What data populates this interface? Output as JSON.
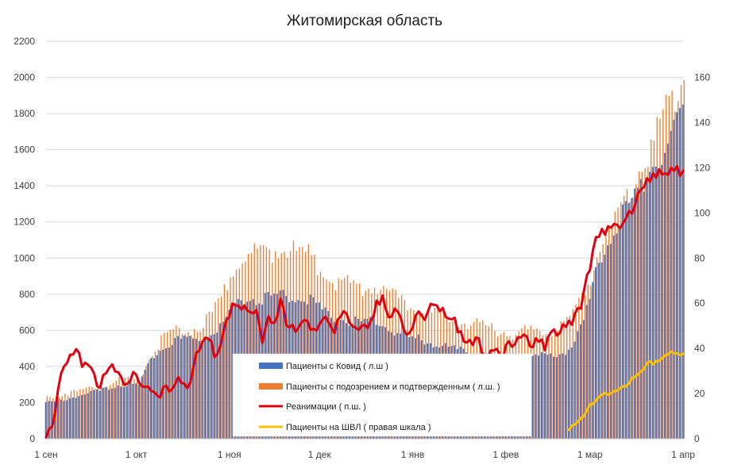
{
  "chart_data": {
    "type": "bar",
    "title": "Житомирская область",
    "x_ticks": [
      "1 сен",
      "1 окт",
      "1 ноя",
      "1 дек",
      "1 янв",
      "1 фев",
      "1 мар",
      "1 апр"
    ],
    "x_tick_days": [
      0,
      30,
      61,
      91,
      122,
      153,
      181,
      212
    ],
    "num_days": 212,
    "y_left": {
      "min": 0,
      "max": 2200,
      "ticks": [
        0,
        200,
        400,
        600,
        800,
        1000,
        1200,
        1400,
        1600,
        1800,
        2000,
        2200
      ]
    },
    "y_right": {
      "min": 0,
      "max": 176,
      "ticks": [
        0,
        20,
        40,
        60,
        80,
        100,
        120,
        140,
        160
      ]
    },
    "grid": true,
    "legend_position": "bottom-center",
    "series": [
      {
        "name": "Пациенты с Ковид ( л.ш )",
        "type": "bar",
        "axis": "left",
        "color": "#4472C4",
        "keypoints": [
          [
            0,
            200
          ],
          [
            10,
            240
          ],
          [
            20,
            280
          ],
          [
            25,
            310
          ],
          [
            31,
            300
          ],
          [
            33,
            380
          ],
          [
            36,
            480
          ],
          [
            40,
            540
          ],
          [
            45,
            560
          ],
          [
            50,
            560
          ],
          [
            55,
            600
          ],
          [
            60,
            680
          ],
          [
            63,
            760
          ],
          [
            67,
            800
          ],
          [
            70,
            790
          ],
          [
            73,
            800
          ],
          [
            78,
            820
          ],
          [
            83,
            800
          ],
          [
            88,
            800
          ],
          [
            91,
            740
          ],
          [
            95,
            700
          ],
          [
            100,
            680
          ],
          [
            105,
            650
          ],
          [
            110,
            680
          ],
          [
            115,
            620
          ],
          [
            120,
            580
          ],
          [
            125,
            560
          ],
          [
            130,
            540
          ],
          [
            135,
            510
          ],
          [
            140,
            490
          ],
          [
            145,
            470
          ],
          [
            150,
            460
          ],
          [
            155,
            440
          ],
          [
            160,
            460
          ],
          [
            165,
            470
          ],
          [
            170,
            470
          ],
          [
            175,
            520
          ],
          [
            178,
            620
          ],
          [
            181,
            780
          ],
          [
            184,
            1000
          ],
          [
            188,
            1150
          ],
          [
            191,
            1250
          ],
          [
            195,
            1350
          ],
          [
            198,
            1450
          ],
          [
            202,
            1550
          ],
          [
            205,
            1600
          ],
          [
            208,
            1700
          ],
          [
            212,
            1840
          ]
        ]
      },
      {
        "name": "Пациенты с подозрением и подтвержденным ( л.ш. )",
        "type": "bar",
        "axis": "left",
        "color": "#ED7D31",
        "keypoints": [
          [
            0,
            240
          ],
          [
            10,
            270
          ],
          [
            20,
            310
          ],
          [
            25,
            340
          ],
          [
            31,
            330
          ],
          [
            33,
            420
          ],
          [
            36,
            520
          ],
          [
            40,
            600
          ],
          [
            45,
            620
          ],
          [
            50,
            630
          ],
          [
            55,
            700
          ],
          [
            60,
            880
          ],
          [
            63,
            1000
          ],
          [
            67,
            1060
          ],
          [
            70,
            1060
          ],
          [
            73,
            1060
          ],
          [
            78,
            1080
          ],
          [
            83,
            1070
          ],
          [
            88,
            1040
          ],
          [
            91,
            960
          ],
          [
            95,
            900
          ],
          [
            100,
            890
          ],
          [
            105,
            860
          ],
          [
            110,
            870
          ],
          [
            115,
            820
          ],
          [
            120,
            760
          ],
          [
            125,
            720
          ],
          [
            130,
            700
          ],
          [
            135,
            680
          ],
          [
            140,
            660
          ],
          [
            145,
            640
          ],
          [
            150,
            620
          ],
          [
            155,
            600
          ],
          [
            160,
            620
          ],
          [
            165,
            620
          ],
          [
            170,
            620
          ],
          [
            175,
            700
          ],
          [
            178,
            800
          ],
          [
            181,
            920
          ],
          [
            184,
            1100
          ],
          [
            188,
            1200
          ],
          [
            191,
            1300
          ],
          [
            195,
            1420
          ],
          [
            198,
            1600
          ],
          [
            202,
            1700
          ],
          [
            205,
            1800
          ],
          [
            208,
            1950
          ],
          [
            212,
            2080
          ]
        ]
      },
      {
        "name": "Реанимации ( п.ш. )",
        "type": "line",
        "axis": "right",
        "color": "#E0000F",
        "keypoints": [
          [
            0,
            3
          ],
          [
            2,
            10
          ],
          [
            4,
            22
          ],
          [
            6,
            32
          ],
          [
            8,
            38
          ],
          [
            10,
            39
          ],
          [
            12,
            37
          ],
          [
            14,
            36
          ],
          [
            16,
            31
          ],
          [
            18,
            26
          ],
          [
            20,
            28
          ],
          [
            22,
            31
          ],
          [
            24,
            29
          ],
          [
            26,
            27
          ],
          [
            28,
            31
          ],
          [
            30,
            33
          ],
          [
            32,
            27
          ],
          [
            34,
            23
          ],
          [
            36,
            21
          ],
          [
            38,
            20
          ],
          [
            40,
            23
          ],
          [
            42,
            26
          ],
          [
            44,
            30
          ],
          [
            46,
            28
          ],
          [
            48,
            28
          ],
          [
            50,
            38
          ],
          [
            52,
            42
          ],
          [
            54,
            44
          ],
          [
            56,
            42
          ],
          [
            58,
            44
          ],
          [
            60,
            55
          ],
          [
            62,
            62
          ],
          [
            64,
            60
          ],
          [
            66,
            58
          ],
          [
            68,
            55
          ],
          [
            70,
            58
          ],
          [
            72,
            48
          ],
          [
            74,
            58
          ],
          [
            76,
            54
          ],
          [
            78,
            60
          ],
          [
            80,
            52
          ],
          [
            82,
            50
          ],
          [
            84,
            48
          ],
          [
            86,
            56
          ],
          [
            88,
            54
          ],
          [
            90,
            52
          ],
          [
            92,
            55
          ],
          [
            94,
            51
          ],
          [
            96,
            48
          ],
          [
            98,
            55
          ],
          [
            100,
            55
          ],
          [
            102,
            52
          ],
          [
            104,
            54
          ],
          [
            106,
            56
          ],
          [
            108,
            52
          ],
          [
            110,
            60
          ],
          [
            112,
            62
          ],
          [
            114,
            54
          ],
          [
            116,
            60
          ],
          [
            118,
            58
          ],
          [
            120,
            50
          ],
          [
            122,
            54
          ],
          [
            124,
            56
          ],
          [
            126,
            52
          ],
          [
            128,
            60
          ],
          [
            130,
            62
          ],
          [
            132,
            60
          ],
          [
            134,
            58
          ],
          [
            136,
            56
          ],
          [
            138,
            46
          ],
          [
            140,
            44
          ],
          [
            142,
            42
          ],
          [
            144,
            44
          ],
          [
            146,
            40
          ],
          [
            148,
            43
          ],
          [
            150,
            44
          ],
          [
            152,
            40
          ],
          [
            154,
            42
          ],
          [
            156,
            40
          ],
          [
            158,
            46
          ],
          [
            160,
            48
          ],
          [
            162,
            45
          ],
          [
            164,
            48
          ],
          [
            166,
            44
          ],
          [
            168,
            47
          ],
          [
            170,
            46
          ],
          [
            172,
            50
          ],
          [
            174,
            52
          ],
          [
            176,
            58
          ],
          [
            178,
            62
          ],
          [
            180,
            75
          ],
          [
            182,
            85
          ],
          [
            184,
            90
          ],
          [
            186,
            92
          ],
          [
            188,
            95
          ],
          [
            190,
            98
          ],
          [
            192,
            100
          ],
          [
            194,
            103
          ],
          [
            196,
            106
          ],
          [
            198,
            110
          ],
          [
            200,
            114
          ],
          [
            202,
            116
          ],
          [
            204,
            118
          ],
          [
            206,
            120
          ],
          [
            208,
            125
          ],
          [
            210,
            124
          ],
          [
            212,
            120
          ]
        ]
      },
      {
        "name": "Пациенты на ШВЛ ( правая шкала )",
        "type": "line",
        "axis": "right",
        "color": "#FFC000",
        "keypoints": [
          [
            174,
            6
          ],
          [
            176,
            8
          ],
          [
            178,
            11
          ],
          [
            180,
            13
          ],
          [
            182,
            16
          ],
          [
            184,
            18
          ],
          [
            186,
            20
          ],
          [
            188,
            22
          ],
          [
            190,
            23
          ],
          [
            192,
            24
          ],
          [
            194,
            26
          ],
          [
            196,
            28
          ],
          [
            198,
            30
          ],
          [
            200,
            33
          ],
          [
            202,
            35
          ],
          [
            204,
            36
          ],
          [
            206,
            38
          ],
          [
            208,
            40
          ],
          [
            210,
            38
          ],
          [
            212,
            37
          ]
        ]
      }
    ],
    "legend": [
      {
        "label": "Пациенты с Ковид ( л.ш )",
        "kind": "bar",
        "color": "#4472C4"
      },
      {
        "label": "Пациенты с подозрением и подтвержденным ( л.ш. )",
        "kind": "bar",
        "color": "#ED7D31"
      },
      {
        "label": "Реанимации ( п.ш. )",
        "kind": "line",
        "color": "#E0000F"
      },
      {
        "label": "Пациенты на ШВЛ ( правая шкала )",
        "kind": "line",
        "color": "#FFC000"
      }
    ]
  }
}
